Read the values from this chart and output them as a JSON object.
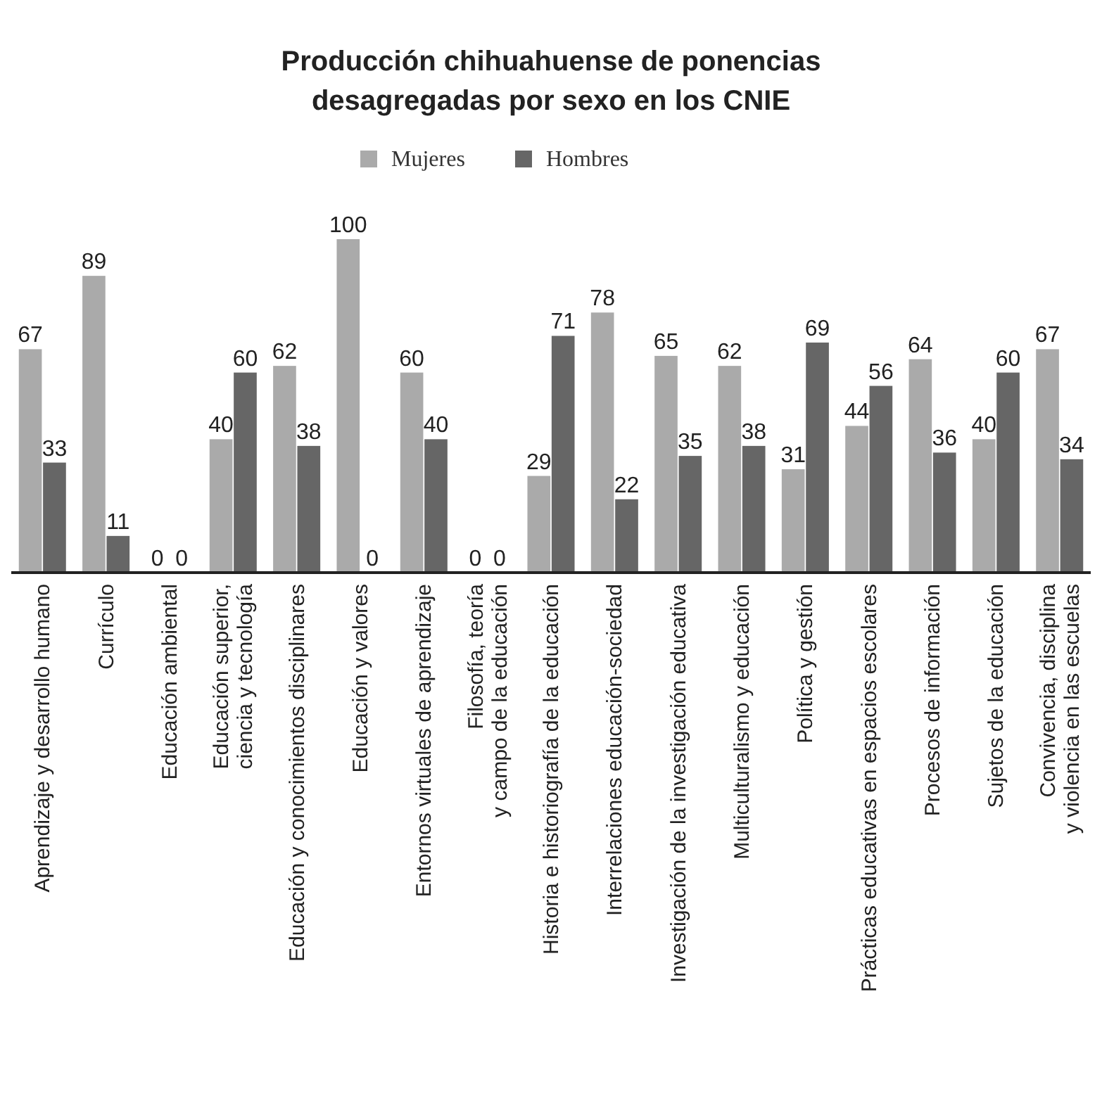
{
  "chart_data": {
    "type": "bar",
    "title": "Producción chihuahuense de ponencias\ndesagregadas por sexo en los CNIE",
    "categories": [
      "Aprendizaje y desarrollo humano",
      "Currículo",
      "Educación ambiental",
      "Educación superior,\nciencia y tecnología",
      "Educación y conocimientos disciplinares",
      "Educación y valores",
      "Entornos virtuales de aprendizaje",
      "Filosofía, teoría\ny campo de la educación",
      "Historia e historiografía de la educación",
      "Interrelaciones educación-sociedad",
      "Investigación de la investigación educativa",
      "Multiculturalismo y educación",
      "Política y gestión",
      "Prácticas educativas en espacios escolares",
      "Procesos de información",
      "Sujetos de la educación",
      "Convivencia, disciplina\ny violencia en las escuelas"
    ],
    "series": [
      {
        "name": "Mujeres",
        "color": "#aaaaaa",
        "values": [
          67,
          89,
          0,
          40,
          62,
          100,
          60,
          0,
          29,
          78,
          65,
          62,
          31,
          44,
          64,
          40,
          67
        ]
      },
      {
        "name": "Hombres",
        "color": "#666666",
        "values": [
          33,
          11,
          0,
          60,
          38,
          0,
          40,
          0,
          71,
          22,
          35,
          38,
          69,
          56,
          36,
          60,
          34
        ]
      }
    ],
    "data_labels": true,
    "legend": "top"
  }
}
